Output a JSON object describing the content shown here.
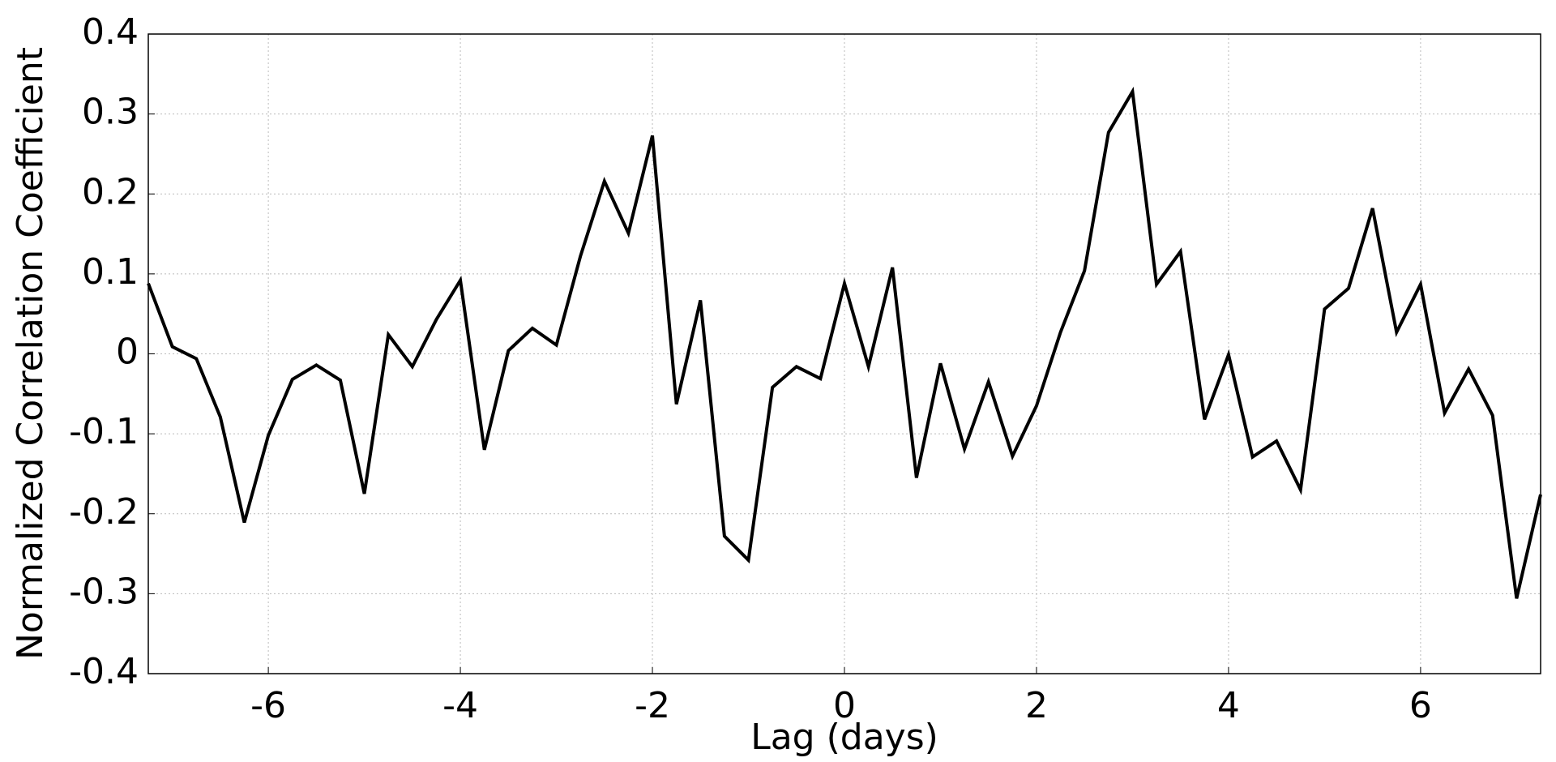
{
  "chart_data": {
    "type": "line",
    "xlabel": "Lag (days)",
    "ylabel": "Normalized Correlation Coefficient",
    "x": [
      -7.25,
      -7,
      -6.75,
      -6.5,
      -6.25,
      -6,
      -5.75,
      -5.5,
      -5.25,
      -5,
      -4.75,
      -4.5,
      -4.25,
      -4,
      -3.75,
      -3.5,
      -3.25,
      -3,
      -2.75,
      -2.5,
      -2.25,
      -2,
      -1.75,
      -1.5,
      -1.25,
      -1,
      -0.75,
      -0.5,
      -0.25,
      0,
      0.25,
      0.5,
      0.75,
      1,
      1.25,
      1.5,
      1.75,
      2,
      2.25,
      2.5,
      2.75,
      3,
      3.25,
      3.5,
      3.75,
      4,
      4.25,
      4.5,
      4.75,
      5,
      5.25,
      5.5,
      5.75,
      6,
      6.25,
      6.5,
      6.75,
      7,
      7.25
    ],
    "series": [
      {
        "name": "correlation",
        "color": "#000000",
        "values": [
          0.088,
          0.009,
          -0.006,
          -0.079,
          -0.211,
          -0.102,
          -0.032,
          -0.014,
          -0.033,
          -0.175,
          0.024,
          -0.016,
          0.043,
          0.092,
          -0.12,
          0.004,
          0.032,
          0.011,
          0.122,
          0.216,
          0.151,
          0.273,
          -0.063,
          0.067,
          -0.228,
          -0.258,
          -0.042,
          -0.016,
          -0.031,
          0.088,
          -0.016,
          0.108,
          -0.155,
          -0.012,
          -0.119,
          -0.035,
          -0.128,
          -0.065,
          0.027,
          0.104,
          0.277,
          0.328,
          0.087,
          0.128,
          -0.082,
          -0.001,
          -0.129,
          -0.109,
          -0.17,
          0.056,
          0.082,
          0.182,
          0.027,
          0.087,
          -0.074,
          -0.019,
          -0.077,
          -0.306,
          -0.176
        ]
      }
    ],
    "xlim": [
      -7.25,
      7.25
    ],
    "ylim": [
      -0.4,
      0.4
    ],
    "xticks": [
      -6,
      -4,
      -2,
      0,
      2,
      4,
      6
    ],
    "yticks": [
      -0.4,
      -0.3,
      -0.2,
      -0.1,
      0,
      0.1,
      0.2,
      0.3,
      0.4
    ],
    "grid": true
  }
}
